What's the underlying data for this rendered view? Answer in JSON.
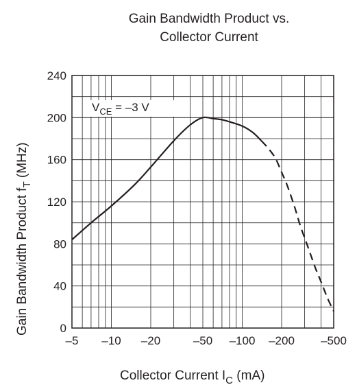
{
  "chart_data": {
    "type": "line",
    "title_line1": "Gain Bandwidth Product vs.",
    "title_line2": "Collector Current",
    "xlabel_main": "Collector Current  I",
    "xlabel_sub": "C",
    "xlabel_unit": "  (mA)",
    "ylabel_main": "Gain Bandwidth Product  f",
    "ylabel_sub": "T",
    "ylabel_unit": "  (MHz)",
    "x_scale": "log",
    "xlim": [
      -5,
      -500
    ],
    "ylim": [
      0,
      240
    ],
    "grid": true,
    "x_ticks": [
      -5,
      -10,
      -20,
      -50,
      -100,
      -200,
      -500
    ],
    "x_tick_labels": [
      "–5",
      "–10",
      "–20",
      "–50",
      "–100",
      "–200",
      "–500"
    ],
    "y_ticks": [
      0,
      40,
      80,
      120,
      160,
      200,
      240
    ],
    "y_tick_labels": [
      "0",
      "40",
      "80",
      "120",
      "160",
      "200",
      "240"
    ],
    "annotation": {
      "main": "V",
      "sub": "CE",
      "rest": " = –3 V"
    },
    "series": [
      {
        "style": "solid",
        "x": [
          -5,
          -7,
          -10,
          -15,
          -20,
          -30,
          -40,
          -50,
          -60,
          -70,
          -80,
          -100,
          -120,
          -140
        ],
        "y": [
          84,
          100,
          116,
          136,
          153,
          178,
          193,
          200,
          199,
          198,
          196,
          192,
          186,
          178
        ]
      },
      {
        "style": "dashed",
        "x": [
          -140,
          -160,
          -180,
          -200,
          -220,
          -250,
          -280,
          -320,
          -360,
          -400,
          -450,
          -500
        ],
        "y": [
          178,
          170,
          161,
          148,
          136,
          116,
          96,
          76,
          58,
          44,
          28,
          16
        ]
      }
    ]
  }
}
